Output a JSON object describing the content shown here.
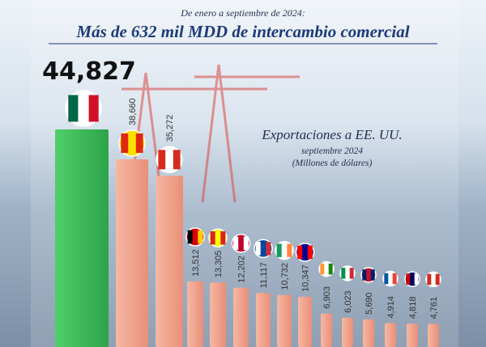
{
  "chart_data": {
    "type": "bar",
    "subtitle": "De enero a septiembre de 2024:",
    "title": "Más de 632 mil MDD de intercambio comercial",
    "annotations": [
      "Exportaciones a EE. UU.",
      "septiembre 2024",
      "(Millones de dólares)"
    ],
    "values": [
      44827,
      38660,
      35272,
      13512,
      13305,
      12202,
      11117,
      10732,
      10347,
      6903,
      6023,
      5690,
      4914,
      4818,
      4761
    ],
    "value_labels": [
      "44,827",
      "38,660",
      "35,272",
      "13,512",
      "13,305",
      "12,202",
      "11,117",
      "10,732",
      "10,347",
      "6,903",
      "6,023",
      "5,690",
      "4,914",
      "4,818",
      "4,761"
    ],
    "colors": [
      "#3cbf5a",
      "#f0a48e"
    ]
  }
}
